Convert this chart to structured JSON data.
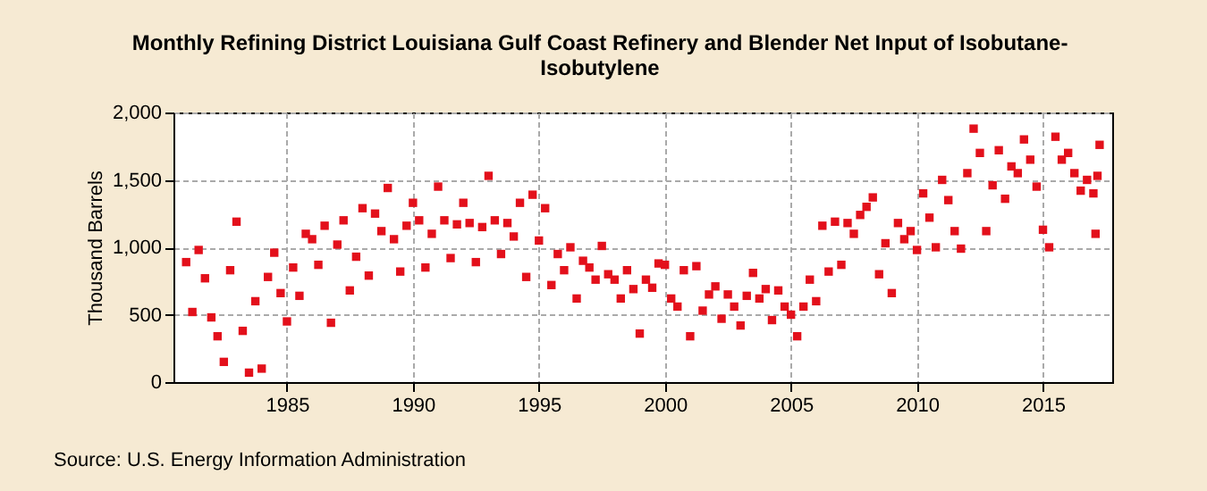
{
  "chart_data": {
    "type": "scatter",
    "title": "Monthly Refining District Louisiana Gulf Coast Refinery and Blender Net Input of Isobutane-Isobutylene",
    "ylabel": "Thousand Barrels",
    "annotations": [
      "Source: U.S. Energy Information Administration"
    ],
    "x": [
      "1981-01",
      "1981-04",
      "1981-07",
      "1981-10",
      "1982-01",
      "1982-04",
      "1982-07",
      "1982-10",
      "1983-01",
      "1983-04",
      "1983-07",
      "1983-10",
      "1984-01",
      "1984-04",
      "1984-07",
      "1984-10",
      "1985-01",
      "1985-04",
      "1985-07",
      "1985-10",
      "1986-01",
      "1986-04",
      "1986-07",
      "1986-10",
      "1987-01",
      "1987-04",
      "1987-07",
      "1987-10",
      "1988-01",
      "1988-04",
      "1988-07",
      "1988-10",
      "1989-01",
      "1989-04",
      "1989-07",
      "1989-10",
      "1990-01",
      "1990-04",
      "1990-07",
      "1990-10",
      "1991-01",
      "1991-04",
      "1991-07",
      "1991-10",
      "1992-01",
      "1992-04",
      "1992-07",
      "1992-10",
      "1993-01",
      "1993-04",
      "1993-07",
      "1993-10",
      "1994-01",
      "1994-04",
      "1994-07",
      "1994-10",
      "1995-01",
      "1995-04",
      "1995-07",
      "1995-10",
      "1996-01",
      "1996-04",
      "1996-07",
      "1996-10",
      "1997-01",
      "1997-04",
      "1997-07",
      "1997-10",
      "1998-01",
      "1998-04",
      "1998-07",
      "1998-10",
      "1999-01",
      "1999-04",
      "1999-07",
      "1999-10",
      "2000-01",
      "2000-04",
      "2000-07",
      "2000-10",
      "2001-01",
      "2001-04",
      "2001-07",
      "2001-10",
      "2002-01",
      "2002-04",
      "2002-07",
      "2002-10",
      "2003-01",
      "2003-04",
      "2003-07",
      "2003-10",
      "2004-01",
      "2004-04",
      "2004-07",
      "2004-10",
      "2005-01",
      "2005-04",
      "2005-07",
      "2005-10",
      "2006-01",
      "2006-04",
      "2006-07",
      "2006-10",
      "2007-01",
      "2007-04",
      "2007-07",
      "2007-10",
      "2008-01",
      "2008-04",
      "2008-07",
      "2008-10",
      "2009-01",
      "2009-04",
      "2009-07",
      "2009-10",
      "2010-01",
      "2010-04",
      "2010-07",
      "2010-10",
      "2011-01",
      "2011-04",
      "2011-07",
      "2011-10",
      "2012-01",
      "2012-04",
      "2012-07",
      "2012-10",
      "2013-01",
      "2013-04",
      "2013-07",
      "2013-10",
      "2014-01",
      "2014-04",
      "2014-07",
      "2014-10",
      "2015-01",
      "2015-04",
      "2015-07",
      "2015-10",
      "2016-01",
      "2016-04",
      "2016-07",
      "2016-10",
      "2017-01",
      "2017-02",
      "2017-03",
      "2017-04"
    ],
    "series": [
      {
        "color": "#e3101b",
        "values": [
          890,
          520,
          980,
          770,
          480,
          340,
          150,
          830,
          1190,
          380,
          70,
          600,
          100,
          780,
          960,
          660,
          450,
          850,
          640,
          1100,
          1060,
          870,
          1160,
          440,
          1020,
          1200,
          680,
          930,
          1290,
          790,
          1250,
          1120,
          1440,
          1060,
          820,
          1160,
          1330,
          1200,
          850,
          1100,
          1450,
          1200,
          920,
          1170,
          1330,
          1180,
          890,
          1150,
          1530,
          1200,
          950,
          1180,
          1080,
          1330,
          780,
          1390,
          1050,
          1290,
          720,
          950,
          830,
          1000,
          620,
          900,
          850,
          760,
          1010,
          800,
          760,
          620,
          830,
          690,
          360,
          760,
          700,
          880,
          870,
          620,
          560,
          830,
          340,
          860,
          530,
          650,
          710,
          470,
          650,
          560,
          420,
          640,
          810,
          620,
          690,
          460,
          680,
          560,
          500,
          340,
          560,
          760,
          600,
          1160,
          820,
          1190,
          870,
          1180,
          1100,
          1240,
          1300,
          1370,
          800,
          1030,
          660,
          1180,
          1060,
          1120,
          980,
          1400,
          1220,
          1000,
          1500,
          1350,
          1120,
          990,
          1550,
          1880,
          1700,
          1120,
          1460,
          1720,
          1360,
          1600,
          1550,
          1800,
          1650,
          1450,
          1130,
          1000,
          1820,
          1650,
          1700,
          1550,
          1420,
          1500,
          1400,
          1100,
          1530,
          1760
        ]
      }
    ],
    "xlim": [
      "1980-07",
      "2017-10"
    ],
    "xticks": [
      "1985",
      "1990",
      "1995",
      "2000",
      "2005",
      "2010",
      "2015"
    ],
    "ylim": [
      0,
      2000
    ],
    "yticks": [
      0,
      500,
      {
        "value": 1000,
        "label": "1,000"
      },
      {
        "value": 1500,
        "label": "1,500"
      },
      {
        "value": 2000,
        "label": "2,000"
      }
    ],
    "grid": true,
    "marker": "square"
  }
}
